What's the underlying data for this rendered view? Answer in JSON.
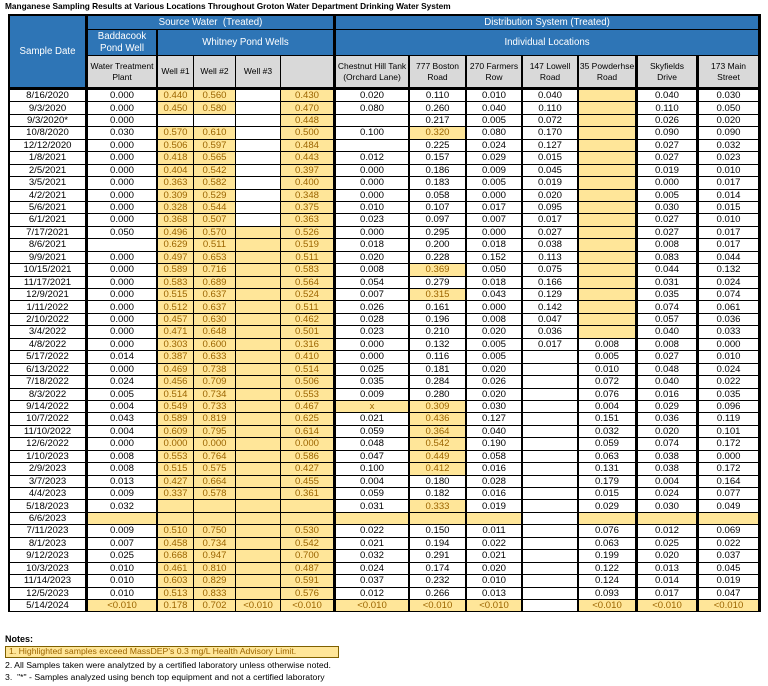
{
  "title": "Manganese Sampling Results at Various Locations Throughout Groton Water Department Drinking Water System",
  "colors": {
    "header_blue": "#2E75B6",
    "header_gray": "#D9D9D9",
    "highlight_yellow": "#FFE699",
    "highlight_text": "#9C6500",
    "border": "#000000"
  },
  "table": {
    "corner_header": "Sample Date",
    "groups": [
      {
        "label": "Source Water  (Treated)"
      },
      {
        "label": "Distribution System (Treated)"
      }
    ],
    "subgroups": [
      {
        "label": "Baddacook\nPond Well"
      },
      {
        "label": "Whitney Pond Wells"
      },
      {
        "label": "Individual Locations"
      }
    ],
    "columns": [
      "Water Treatment\nPlant",
      "Well #1",
      "Well #2",
      "Well #3",
      "",
      "Chestnut Hill Tank\n(Orchard Lane)",
      "777 Boston\nRoad",
      "270 Farmers\nRow",
      "147 Lowell\nRoad",
      "35 Powderhse\nRoad",
      "Skyfields\nDrive",
      "173 Main\nStreet"
    ],
    "cell_legend": "plain string = white cell; H:value = yellow highlighted value; Y = yellow blank; empty = white blank",
    "rows": [
      {
        "date": "8/16/2020",
        "cells": [
          "0.000",
          "H:0.440",
          "H:0.560",
          "",
          "H:0.430",
          "0.020",
          "0.110",
          "0.010",
          "0.040",
          "Y",
          "0.040",
          "0.030"
        ]
      },
      {
        "date": "9/3/2020",
        "cells": [
          "0.000",
          "H:0.450",
          "H:0.580",
          "",
          "H:0.470",
          "0.080",
          "0.260",
          "0.040",
          "0.110",
          "Y",
          "0.110",
          "0.050"
        ]
      },
      {
        "date": "9/3/2020*",
        "cells": [
          "0.000",
          "",
          "",
          "",
          "H:0.448",
          "",
          "0.217",
          "0.005",
          "0.072",
          "Y",
          "0.026",
          "0.020"
        ]
      },
      {
        "date": "10/8/2020",
        "cells": [
          "0.030",
          "H:0.570",
          "H:0.610",
          "",
          "H:0.500",
          "0.100",
          "H:0.320",
          "0.080",
          "0.170",
          "Y",
          "0.090",
          "0.090"
        ]
      },
      {
        "date": "12/12/2020",
        "cells": [
          "0.000",
          "H:0.506",
          "H:0.597",
          "",
          "H:0.484",
          "",
          "0.225",
          "0.024",
          "0.127",
          "Y",
          "0.027",
          "0.032"
        ]
      },
      {
        "date": "1/8/2021",
        "cells": [
          "0.000",
          "H:0.418",
          "H:0.565",
          "",
          "H:0.443",
          "0.012",
          "0.157",
          "0.029",
          "0.015",
          "Y",
          "0.027",
          "0.023"
        ]
      },
      {
        "date": "2/5/2021",
        "cells": [
          "0.000",
          "H:0.404",
          "H:0.542",
          "",
          "H:0.397",
          "0.000",
          "0.186",
          "0.009",
          "0.045",
          "Y",
          "0.019",
          "0.010"
        ]
      },
      {
        "date": "3/5/2021",
        "cells": [
          "0.000",
          "H:0.363",
          "H:0.582",
          "",
          "H:0.400",
          "0.000",
          "0.183",
          "0.005",
          "0.019",
          "Y",
          "0.000",
          "0.017"
        ]
      },
      {
        "date": "4/2/2021",
        "cells": [
          "0.000",
          "H:0.309",
          "H:0.529",
          "",
          "H:0.348",
          "0.000",
          "0.058",
          "0.000",
          "0.020",
          "Y",
          "0.005",
          "0.014"
        ]
      },
      {
        "date": "5/6/2021",
        "cells": [
          "0.000",
          "H:0.328",
          "H:0.544",
          "",
          "H:0.375",
          "0.010",
          "0.107",
          "0.017",
          "0.095",
          "Y",
          "0.030",
          "0.015"
        ]
      },
      {
        "date": "6/1/2021",
        "cells": [
          "0.000",
          "H:0.368",
          "H:0.507",
          "",
          "H:0.363",
          "0.023",
          "0.097",
          "0.007",
          "0.017",
          "Y",
          "0.027",
          "0.010"
        ]
      },
      {
        "date": "7/17/2021",
        "cells": [
          "0.050",
          "H:0.496",
          "H:0.570",
          "Y",
          "H:0.526",
          "0.000",
          "0.295",
          "0.000",
          "0.027",
          "Y",
          "0.027",
          "0.017"
        ]
      },
      {
        "date": "8/6/2021",
        "cells": [
          "",
          "H:0.629",
          "H:0.511",
          "Y",
          "H:0.519",
          "0.018",
          "0.200",
          "0.018",
          "0.038",
          "Y",
          "0.008",
          "0.017"
        ]
      },
      {
        "date": "9/9/2021",
        "cells": [
          "0.000",
          "H:0.497",
          "H:0.653",
          "Y",
          "H:0.511",
          "0.020",
          "0.228",
          "0.152",
          "0.113",
          "Y",
          "0.083",
          "0.044"
        ]
      },
      {
        "date": "10/15/2021",
        "cells": [
          "0.000",
          "H:0.589",
          "H:0.716",
          "Y",
          "H:0.583",
          "0.008",
          "H:0.369",
          "0.050",
          "0.075",
          "Y",
          "0.044",
          "0.132"
        ]
      },
      {
        "date": "11/17/2021",
        "cells": [
          "0.000",
          "H:0.583",
          "H:0.689",
          "Y",
          "H:0.564",
          "0.054",
          "0.279",
          "0.018",
          "0.166",
          "Y",
          "0.031",
          "0.024"
        ]
      },
      {
        "date": "12/9/2021",
        "cells": [
          "0.000",
          "H:0.515",
          "H:0.637",
          "Y",
          "H:0.524",
          "0.007",
          "H:0.315",
          "0.043",
          "0.129",
          "Y",
          "0.035",
          "0.074"
        ]
      },
      {
        "date": "1/11/2022",
        "cells": [
          "0.000",
          "H:0.512",
          "H:0.637",
          "Y",
          "H:0.511",
          "0.026",
          "0.161",
          "0.000",
          "0.142",
          "Y",
          "0.074",
          "0.061"
        ]
      },
      {
        "date": "2/10/2022",
        "cells": [
          "0.000",
          "H:0.457",
          "H:0.630",
          "Y",
          "H:0.462",
          "0.028",
          "0.196",
          "0.008",
          "0.047",
          "Y",
          "0.057",
          "0.036"
        ]
      },
      {
        "date": "3/4/2022",
        "cells": [
          "0.000",
          "H:0.471",
          "H:0.648",
          "Y",
          "H:0.501",
          "0.023",
          "0.210",
          "0.020",
          "0.036",
          "Y",
          "0.040",
          "0.033"
        ]
      },
      {
        "date": "4/8/2022",
        "cells": [
          "0.000",
          "H:0.303",
          "H:0.600",
          "Y",
          "H:0.316",
          "0.000",
          "0.132",
          "0.005",
          "0.017",
          "0.008",
          "0.008",
          "0.000"
        ]
      },
      {
        "date": "5/17/2022",
        "cells": [
          "0.014",
          "H:0.387",
          "H:0.633",
          "Y",
          "H:0.410",
          "0.000",
          "0.116",
          "0.005",
          "",
          "0.005",
          "0.027",
          "0.010"
        ]
      },
      {
        "date": "6/13/2022",
        "cells": [
          "0.000",
          "H:0.469",
          "H:0.738",
          "Y",
          "H:0.514",
          "0.025",
          "0.181",
          "0.020",
          "",
          "0.010",
          "0.048",
          "0.024"
        ]
      },
      {
        "date": "7/18/2022",
        "cells": [
          "0.024",
          "H:0.456",
          "H:0.709",
          "Y",
          "H:0.506",
          "0.035",
          "0.284",
          "0.026",
          "",
          "0.072",
          "0.040",
          "0.022"
        ]
      },
      {
        "date": "8/3/2022",
        "cells": [
          "0.005",
          "H:0.514",
          "H:0.734",
          "Y",
          "H:0.553",
          "0.009",
          "0.280",
          "0.020",
          "",
          "0.076",
          "0.016",
          "0.035"
        ]
      },
      {
        "date": "9/14/2022",
        "cells": [
          "0.004",
          "H:0.549",
          "H:0.733",
          "Y",
          "H:0.467",
          "H:x",
          "H:0.309",
          "0.030",
          "",
          "0.004",
          "0.029",
          "0.096"
        ]
      },
      {
        "date": "10/7/2022",
        "cells": [
          "0.043",
          "H:0.589",
          "H:0.819",
          "Y",
          "H:0.625",
          "0.021",
          "H:0.436",
          "0.127",
          "",
          "0.151",
          "0.036",
          "0.119"
        ]
      },
      {
        "date": "11/10/2022",
        "cells": [
          "0.004",
          "H:0.609",
          "H:0.795",
          "Y",
          "H:0.614",
          "0.059",
          "H:0.364",
          "0.040",
          "",
          "0.032",
          "0.020",
          "0.101"
        ]
      },
      {
        "date": "12/6/2022",
        "cells": [
          "0.000",
          "H:0.000",
          "H:0.000",
          "Y",
          "H:0.000",
          "0.048",
          "H:0.542",
          "0.190",
          "",
          "0.059",
          "0.074",
          "0.172"
        ]
      },
      {
        "date": "1/10/2023",
        "cells": [
          "0.008",
          "H:0.553",
          "H:0.764",
          "Y",
          "H:0.586",
          "0.047",
          "H:0.449",
          "0.058",
          "",
          "0.063",
          "0.038",
          "0.000"
        ]
      },
      {
        "date": "2/9/2023",
        "cells": [
          "0.008",
          "H:0.515",
          "H:0.575",
          "Y",
          "H:0.427",
          "0.100",
          "H:0.412",
          "0.016",
          "",
          "0.131",
          "0.038",
          "0.172"
        ]
      },
      {
        "date": "3/7/2023",
        "cells": [
          "0.013",
          "H:0.427",
          "H:0.664",
          "Y",
          "H:0.455",
          "0.004",
          "0.180",
          "0.028",
          "",
          "0.179",
          "0.004",
          "0.164"
        ]
      },
      {
        "date": "4/4/2023",
        "cells": [
          "0.009",
          "H:0.337",
          "H:0.578",
          "Y",
          "H:0.361",
          "0.059",
          "0.182",
          "0.016",
          "",
          "0.015",
          "0.024",
          "0.077"
        ]
      },
      {
        "date": "5/18/2023",
        "cells": [
          "0.032",
          "Y",
          "Y",
          "Y",
          "Y",
          "0.031",
          "H:0.333",
          "0.019",
          "",
          "0.029",
          "0.030",
          "0.049"
        ]
      },
      {
        "date": "6/6/2023",
        "cells": [
          "Y",
          "Y",
          "Y",
          "Y",
          "Y",
          "Y",
          "Y",
          "Y",
          "",
          "Y",
          "Y",
          "Y"
        ]
      },
      {
        "date": "7/11/2023",
        "cells": [
          "0.009",
          "H:0.510",
          "H:0.750",
          "Y",
          "H:0.530",
          "0.022",
          "0.150",
          "0.011",
          "",
          "0.076",
          "0.012",
          "0.069"
        ]
      },
      {
        "date": "8/1/2023",
        "cells": [
          "0.007",
          "H:0.458",
          "H:0.734",
          "Y",
          "H:0.542",
          "0.021",
          "0.194",
          "0.022",
          "",
          "0.063",
          "0.025",
          "0.022"
        ]
      },
      {
        "date": "9/12/2023",
        "cells": [
          "0.025",
          "H:0.668",
          "H:0.947",
          "Y",
          "H:0.700",
          "0.032",
          "0.291",
          "0.021",
          "",
          "0.199",
          "0.020",
          "0.037"
        ]
      },
      {
        "date": "10/3/2023",
        "cells": [
          "0.010",
          "H:0.461",
          "H:0.810",
          "Y",
          "H:0.487",
          "0.024",
          "0.174",
          "0.020",
          "",
          "0.122",
          "0.013",
          "0.045"
        ]
      },
      {
        "date": "11/14/2023",
        "cells": [
          "0.010",
          "H:0.603",
          "H:0.829",
          "Y",
          "H:0.591",
          "0.037",
          "0.232",
          "0.010",
          "",
          "0.124",
          "0.014",
          "0.019"
        ]
      },
      {
        "date": "12/5/2023",
        "cells": [
          "0.010",
          "H:0.513",
          "H:0.833",
          "Y",
          "H:0.576",
          "0.012",
          "0.266",
          "0.013",
          "",
          "0.093",
          "0.017",
          "0.047"
        ]
      },
      {
        "date": "5/14/2024",
        "cells": [
          "H:<0.010",
          "H:0.178",
          "H:0.702",
          "H:<0.010",
          "H:<0.010",
          "H:<0.010",
          "H:<0.010",
          "H:<0.010",
          "",
          "H:<0.010",
          "H:<0.010",
          "H:<0.010"
        ]
      }
    ]
  },
  "notes": {
    "heading": "Notes:",
    "note1": "1. Highlighted samples exceed MassDEP's 0.3 mg/L Health Advisory Limit.",
    "note2": "2. All Samples taken were analytzed by a certified laboratory unless otherwise noted.",
    "note3": "3.  \"*\" - Samples analyzed using bench top equipment and not a certified laboratory"
  }
}
